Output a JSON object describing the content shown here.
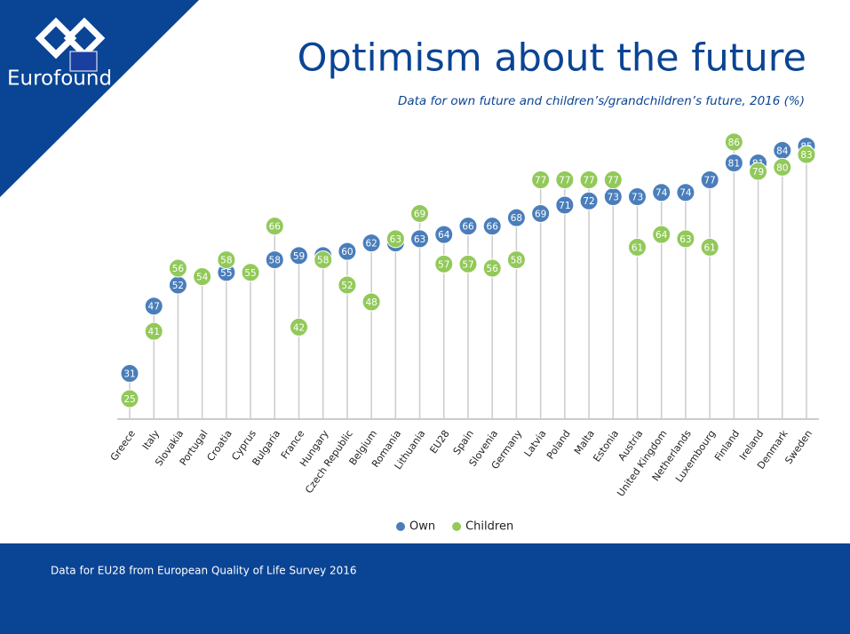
{
  "brand": "Eurofound",
  "footnote": "Data for EU28 from European Quality of Life Survey 2016",
  "chart_data": {
    "type": "dot",
    "title": "Optimism about the future",
    "subtitle": "Data for own future and children’s/grandchildren’s future, 2016 (%)",
    "categories": [
      "Greece",
      "Italy",
      "Slovakia",
      "Portugal",
      "Croatia",
      "Cyprus",
      "Bulgaria",
      "France",
      "Hungary",
      "Czech Republic",
      "Belgium",
      "Romania",
      "Lithuania",
      "EU28",
      "Spain",
      "Slovenia",
      "Germany",
      "Latvia",
      "Poland",
      "Malta",
      "Estonia",
      "Austria",
      "United Kingdom",
      "Netherlands",
      "Luxembourg",
      "Finland",
      "Ireland",
      "Denmark",
      "Sweden"
    ],
    "series": [
      {
        "name": "Own",
        "color": "#4a7ebb",
        "values": [
          31,
          47,
          52,
          54,
          55,
          55,
          58,
          59,
          59,
          60,
          62,
          62,
          63,
          64,
          66,
          66,
          68,
          69,
          71,
          72,
          73,
          73,
          74,
          74,
          77,
          81,
          81,
          84,
          85
        ]
      },
      {
        "name": "Children",
        "color": "#92c95a",
        "values": [
          25,
          41,
          56,
          54,
          58,
          55,
          66,
          42,
          58,
          52,
          48,
          63,
          69,
          57,
          57,
          56,
          58,
          77,
          77,
          77,
          77,
          61,
          64,
          63,
          61,
          86,
          79,
          80,
          83
        ]
      }
    ],
    "legend": "bottom"
  }
}
